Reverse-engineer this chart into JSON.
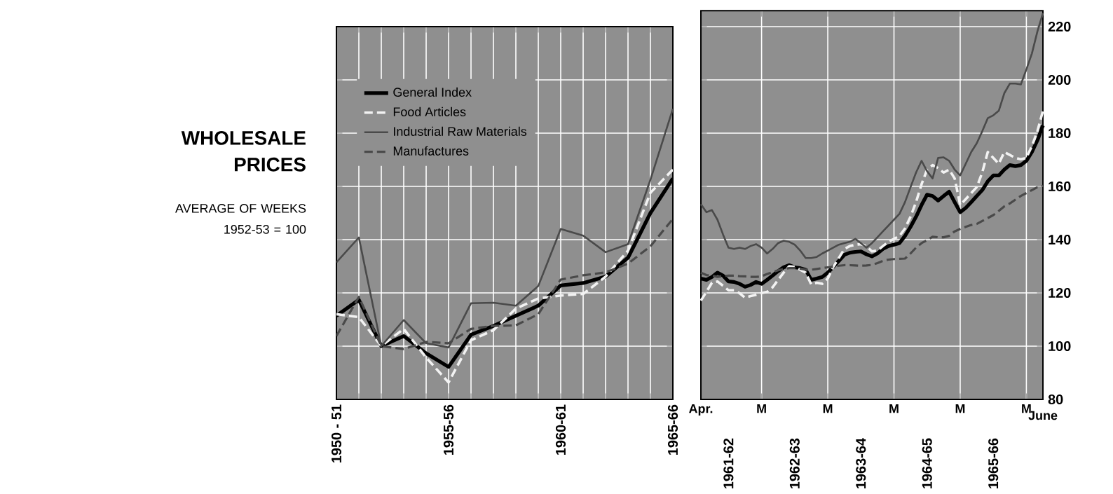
{
  "chart_data": [
    {
      "type": "line",
      "title": "WHOLESALE PRICES",
      "subtitle": "AVERAGE OF WEEKS 1952-53 = 100",
      "categories": [
        "1950 - 51",
        null,
        null,
        null,
        null,
        "1955-56",
        null,
        null,
        null,
        null,
        "1960-61",
        null,
        null,
        null,
        null,
        "1965-66"
      ],
      "series": [
        {
          "name": "General Index",
          "color": "#000000",
          "line_style": "solid",
          "values": [
            111.4,
            117.4,
            100,
            103.8,
            97.3,
            92.2,
            104.3,
            107.6,
            111.4,
            115.2,
            122.8,
            123.7,
            126.1,
            133.2,
            150,
            163
          ]
        },
        {
          "name": "Food Articles",
          "color": "#f2f2f2",
          "line_style": "dashed",
          "values": [
            112,
            110.9,
            100,
            106.5,
            95.7,
            86.4,
            102.2,
            106,
            114.1,
            117.9,
            119,
            119.6,
            126.1,
            135.9,
            157.6,
            166.3
          ]
        },
        {
          "name": "Industrial Raw Materials",
          "color": "#4a4a4a",
          "line_style": "solid",
          "values": [
            131.5,
            140.8,
            100,
            109.8,
            101.1,
            99.5,
            116.1,
            116.3,
            115.2,
            122.6,
            144,
            141.5,
            135.3,
            138.3,
            162.5,
            189.1
          ]
        },
        {
          "name": "Manufactures",
          "color": "#4a4a4a",
          "line_style": "dashed",
          "values": [
            103.8,
            118.5,
            100,
            98.9,
            101.6,
            101.1,
            106.5,
            107.6,
            107.8,
            112,
            125,
            126.6,
            127.7,
            131,
            137.5,
            147.8
          ]
        }
      ],
      "ylim": [
        80,
        220
      ],
      "yticks": [
        80,
        100,
        120,
        140,
        160,
        180,
        200,
        220
      ],
      "tick_labels": "x",
      "grid": true,
      "legend": "top left"
    },
    {
      "type": "line",
      "categories": [
        "Apr.",
        null,
        null,
        null,
        null,
        null,
        null,
        null,
        null,
        null,
        null,
        "M",
        null,
        null,
        null,
        null,
        null,
        null,
        null,
        null,
        null,
        null,
        null,
        "M",
        null,
        null,
        null,
        null,
        null,
        null,
        null,
        null,
        null,
        null,
        null,
        "M",
        null,
        null,
        null,
        null,
        null,
        null,
        null,
        null,
        null,
        null,
        null,
        "M",
        null,
        null,
        null,
        null,
        null,
        null,
        null,
        null,
        null,
        null,
        null,
        "M",
        null,
        null,
        "June"
      ],
      "series": [
        {
          "color": "#000000",
          "line_style": "solid",
          "values": [
            125.4,
            124.9,
            126,
            127.6,
            126.5,
            124.3,
            124.1,
            123.4,
            122.3,
            123,
            124.1,
            123.4,
            124.9,
            126.5,
            128.2,
            129.6,
            130.4,
            129.6,
            129.3,
            128.7,
            124.9,
            125.4,
            126,
            127.6,
            129.8,
            132,
            134.3,
            135.1,
            135.4,
            135.6,
            134.5,
            133.7,
            134.8,
            136.5,
            137.6,
            138.1,
            138.7,
            141.4,
            144.8,
            148.6,
            153,
            156.9,
            156.4,
            154.7,
            156.4,
            158,
            154.1,
            150.3,
            151.9,
            154.1,
            156.4,
            158.6,
            161.9,
            164.1,
            164.1,
            166.3,
            168,
            167.6,
            168,
            169.6,
            172.9,
            177.3,
            182.9
          ]
        },
        {
          "color": "#f2f2f2",
          "line_style": "dashed",
          "values": [
            117.1,
            120.4,
            123.8,
            124.3,
            122.7,
            121,
            121,
            119.9,
            118.2,
            118.8,
            119.3,
            119.9,
            120.4,
            122.1,
            124.9,
            127.6,
            130,
            129.8,
            128.7,
            127.6,
            123.2,
            123.8,
            123.4,
            125.4,
            129.8,
            133.1,
            136.5,
            137.6,
            138.1,
            138.3,
            137.6,
            135.6,
            135.9,
            137.6,
            139.2,
            140.3,
            141.4,
            144.2,
            148.6,
            154.1,
            160.8,
            166.3,
            168,
            166.9,
            165.2,
            166.3,
            163,
            153,
            155.2,
            157.5,
            159.7,
            165.2,
            172.9,
            170.7,
            168.5,
            172.9,
            171.8,
            170.7,
            170.2,
            170.7,
            175.1,
            180.7,
            188.4
          ]
        },
        {
          "color": "#4a4a4a",
          "line_style": "solid",
          "values": [
            153.3,
            150.3,
            151.1,
            147.5,
            142,
            137,
            136.5,
            137,
            136.5,
            137.6,
            138.3,
            137,
            134.8,
            136.5,
            138.7,
            139.6,
            139.2,
            138.1,
            135.9,
            133.1,
            133.1,
            133.5,
            134.8,
            135.9,
            137,
            138.1,
            138.7,
            139.2,
            140.3,
            138.7,
            137,
            138.7,
            140.9,
            143.1,
            145.3,
            147.5,
            149.7,
            154.1,
            159.7,
            165.2,
            169.6,
            165.7,
            163,
            170.7,
            170.9,
            169.6,
            166.3,
            164.1,
            168.5,
            172.9,
            176.2,
            180.7,
            185.6,
            186.7,
            188.4,
            195,
            198.6,
            198.6,
            198.3,
            203.9,
            209.9,
            218.2,
            225
          ]
        },
        {
          "color": "#4a4a4a",
          "line_style": "dashed",
          "values": [
            127.6,
            126.7,
            126.5,
            126,
            126.3,
            126.5,
            126.5,
            126.3,
            126.2,
            126,
            126,
            126.2,
            127.1,
            127.8,
            128.5,
            129,
            129.3,
            129.3,
            129.1,
            128.7,
            128.7,
            129,
            129.3,
            129.6,
            129.8,
            130.2,
            130.4,
            130.4,
            130.3,
            130.2,
            130.3,
            130.5,
            131.2,
            132,
            132.5,
            132.7,
            132.8,
            132.9,
            134.8,
            137,
            138.7,
            139.8,
            141.1,
            140.9,
            140.9,
            141.4,
            143.1,
            144,
            144.8,
            145.5,
            145.9,
            147,
            148.1,
            149.2,
            150.8,
            152.5,
            153.6,
            155,
            156.4,
            157.5,
            158.6,
            159.7,
            160.2
          ]
        }
      ],
      "ylim": [
        80,
        226
      ],
      "yticks": [
        80,
        100,
        120,
        140,
        160,
        180,
        200,
        220
      ],
      "grid": true,
      "annotations": [
        "1961-62",
        "1962-63",
        "1963-64",
        "1964-65",
        "1965-66"
      ]
    }
  ]
}
